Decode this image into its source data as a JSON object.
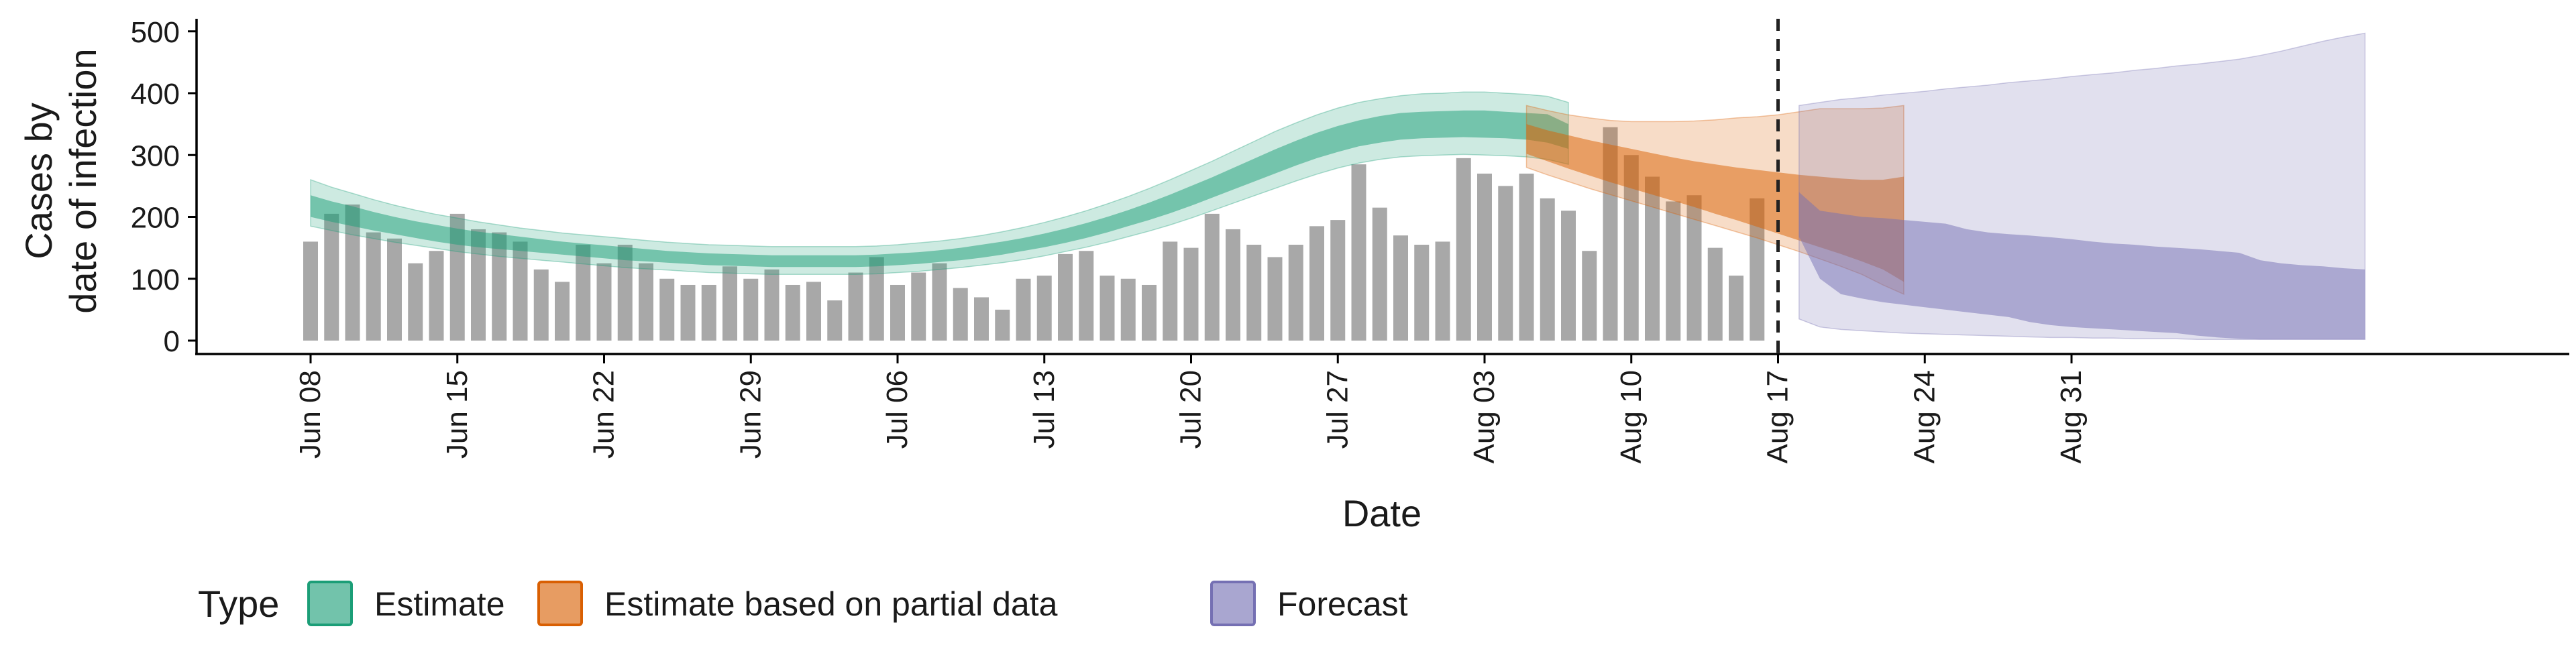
{
  "chart_data": {
    "type": "bar",
    "xlabel": "Date",
    "ylabel_lines": [
      "Cases by",
      "date of infection"
    ],
    "ylim": [
      0,
      520
    ],
    "yticks": [
      0,
      100,
      200,
      300,
      400,
      500
    ],
    "x_start": "2020-06-08",
    "x_end": "2020-08-31",
    "xticks": [
      "Jun 08",
      "Jun 15",
      "Jun 22",
      "Jun 29",
      "Jul 06",
      "Jul 13",
      "Jul 20",
      "Jul 27",
      "Aug 03",
      "Aug 10",
      "Aug 17",
      "Aug 24",
      "Aug 31"
    ],
    "vline": "Aug 17",
    "reported_cases": [
      160,
      205,
      220,
      175,
      165,
      125,
      145,
      205,
      180,
      175,
      160,
      115,
      95,
      155,
      125,
      155,
      125,
      100,
      90,
      90,
      120,
      100,
      115,
      90,
      95,
      65,
      110,
      135,
      90,
      110,
      125,
      85,
      70,
      50,
      100,
      105,
      140,
      145,
      105,
      100,
      90,
      160,
      150,
      205,
      180,
      155,
      135,
      155,
      185,
      195,
      285,
      215,
      170,
      155,
      160,
      295,
      270,
      250,
      270,
      230,
      210,
      145,
      345,
      300,
      265,
      225,
      235,
      150,
      105,
      230
    ],
    "series": [
      {
        "name": "Estimate",
        "color": "#1b9e77",
        "start_day": 0,
        "median": [
          215,
          207,
          200,
          192,
          185,
          178,
          172,
          167,
          163,
          159,
          155,
          152,
          149,
          146,
          143,
          140,
          138,
          135,
          133,
          131,
          130,
          129,
          128,
          128,
          128,
          128,
          128,
          129,
          131,
          133,
          136,
          140,
          144,
          149,
          155,
          162,
          170,
          178,
          188,
          198,
          209,
          221,
          234,
          248,
          262,
          276,
          290,
          304,
          316,
          327,
          336,
          343,
          348,
          350,
          351,
          352,
          351,
          350,
          348,
          346,
          330
        ],
        "low50": [
          200,
          192,
          185,
          178,
          172,
          166,
          160,
          155,
          151,
          148,
          145,
          142,
          139,
          136,
          133,
          130,
          128,
          126,
          124,
          122,
          121,
          120,
          119,
          119,
          119,
          119,
          119,
          120,
          122,
          124,
          127,
          130,
          134,
          139,
          145,
          151,
          158,
          166,
          175,
          185,
          195,
          206,
          218,
          231,
          244,
          257,
          270,
          283,
          295,
          305,
          314,
          320,
          325,
          327,
          328,
          329,
          328,
          327,
          325,
          320,
          310
        ],
        "high50": [
          235,
          225,
          217,
          208,
          200,
          193,
          187,
          181,
          176,
          172,
          168,
          164,
          160,
          157,
          154,
          151,
          148,
          145,
          143,
          141,
          140,
          139,
          138,
          138,
          138,
          138,
          138,
          139,
          141,
          143,
          146,
          150,
          155,
          160,
          166,
          173,
          181,
          190,
          200,
          211,
          223,
          236,
          250,
          264,
          279,
          294,
          309,
          323,
          336,
          347,
          356,
          363,
          368,
          370,
          371,
          372,
          372,
          370,
          368,
          366,
          350
        ],
        "low90": [
          185,
          178,
          171,
          165,
          159,
          154,
          149,
          144,
          140,
          136,
          133,
          130,
          127,
          124,
          121,
          118,
          116,
          114,
          112,
          110,
          109,
          108,
          107,
          107,
          107,
          107,
          107,
          108,
          110,
          112,
          115,
          118,
          122,
          126,
          131,
          137,
          144,
          151,
          159,
          168,
          177,
          187,
          198,
          210,
          222,
          234,
          246,
          258,
          269,
          279,
          287,
          293,
          297,
          299,
          300,
          301,
          300,
          299,
          297,
          293,
          285
        ],
        "high90": [
          260,
          248,
          238,
          228,
          219,
          211,
          204,
          198,
          192,
          187,
          182,
          178,
          174,
          171,
          168,
          165,
          162,
          159,
          157,
          155,
          154,
          153,
          152,
          152,
          152,
          152,
          152,
          153,
          155,
          158,
          161,
          165,
          170,
          176,
          183,
          191,
          200,
          210,
          221,
          233,
          246,
          260,
          275,
          290,
          306,
          322,
          338,
          352,
          365,
          376,
          385,
          391,
          396,
          399,
          400,
          402,
          402,
          400,
          398,
          395,
          385
        ]
      },
      {
        "name": "Estimate based on partial data",
        "color": "#d95f02",
        "start_day": 58,
        "median": [
          335,
          322,
          310,
          298,
          287,
          277,
          267,
          257,
          247,
          237,
          227,
          217,
          207,
          197,
          186,
          175,
          163,
          150,
          130
        ],
        "low50": [
          302,
          290,
          278,
          267,
          256,
          246,
          236,
          226,
          216,
          205,
          195,
          184,
          173,
          162,
          151,
          140,
          128,
          115,
          95
        ],
        "high50": [
          350,
          340,
          332,
          324,
          317,
          310,
          303,
          296,
          290,
          285,
          280,
          276,
          272,
          268,
          265,
          262,
          260,
          260,
          265
        ],
        "low90": [
          280,
          268,
          257,
          246,
          236,
          226,
          216,
          206,
          196,
          186,
          176,
          166,
          155,
          144,
          132,
          120,
          107,
          90,
          75
        ],
        "high90": [
          380,
          372,
          365,
          360,
          356,
          354,
          354,
          354,
          355,
          357,
          360,
          362,
          365,
          370,
          375,
          375,
          375,
          376,
          380
        ]
      },
      {
        "name": "Forecast",
        "color": "#7570b3",
        "start_day": 71,
        "median": [
          200,
          140,
          110,
          100,
          92,
          86,
          80,
          75,
          68,
          64,
          59,
          52,
          46,
          41,
          36,
          31,
          27,
          22,
          18,
          15,
          12,
          11,
          10,
          9,
          8,
          7,
          6,
          6
        ],
        "low50": [
          168,
          100,
          75,
          68,
          62,
          58,
          54,
          50,
          46,
          42,
          38,
          30,
          25,
          22,
          20,
          18,
          16,
          14,
          12,
          8,
          5,
          3,
          2,
          2,
          2,
          2,
          2,
          2
        ],
        "high50": [
          240,
          210,
          205,
          200,
          198,
          195,
          192,
          189,
          180,
          175,
          172,
          170,
          167,
          164,
          160,
          157,
          155,
          152,
          150,
          148,
          145,
          142,
          130,
          125,
          122,
          120,
          117,
          115
        ],
        "low90": [
          35,
          22,
          18,
          16,
          14,
          12,
          11,
          10,
          9,
          8,
          7,
          6,
          5,
          5,
          4,
          4,
          3,
          3,
          3,
          2,
          2,
          2,
          2,
          2,
          2,
          2,
          2,
          2
        ],
        "high90": [
          380,
          385,
          390,
          393,
          397,
          400,
          403,
          407,
          410,
          413,
          417,
          420,
          423,
          427,
          430,
          433,
          437,
          440,
          444,
          447,
          451,
          455,
          461,
          468,
          476,
          484,
          491,
          497
        ]
      }
    ],
    "legend": {
      "title": "Type",
      "items": [
        "Estimate",
        "Estimate based on partial data",
        "Forecast"
      ],
      "position": "bottom"
    },
    "colors": {
      "bars": "#a8a8a8",
      "vline": "#222222",
      "axis": "#000000"
    },
    "grid": false
  }
}
